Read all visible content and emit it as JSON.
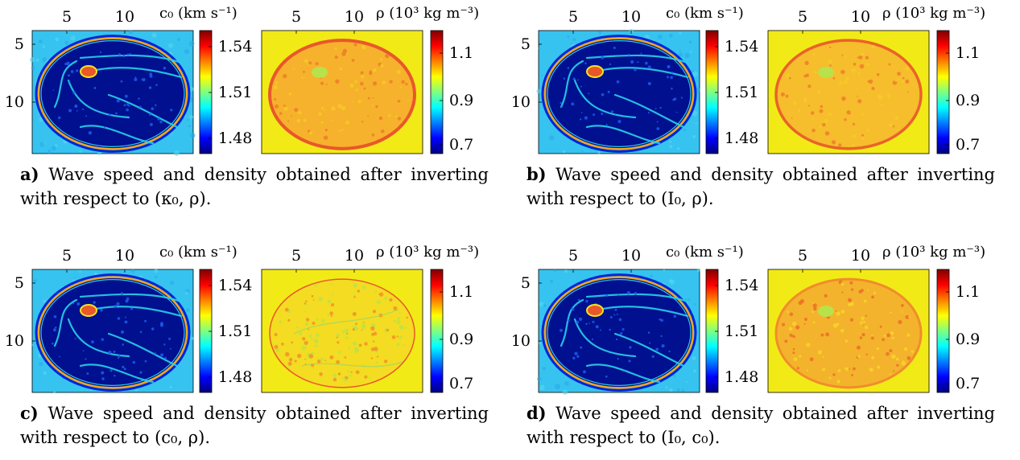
{
  "figure": {
    "panels": [
      {
        "letter": "a)",
        "caption": "Wave speed and density obtained after inverting with respect to (κ₀, ρ).",
        "left_title": "c₀ (km s⁻¹)",
        "right_title": "ρ (10³ kg m⁻³)",
        "variant": "kappa"
      },
      {
        "letter": "b)",
        "caption": "Wave speed and density obtained after inverting with respect to (I₀, ρ).",
        "left_title": "c₀ (km s⁻¹)",
        "right_title": "ρ (10³ kg m⁻³)",
        "variant": "impedance"
      },
      {
        "letter": "c)",
        "caption": "Wave speed and density obtained after inverting with respect to (c₀, ρ).",
        "left_title": "c₀ (km s⁻¹)",
        "right_title": "ρ (10³ kg m⁻³)",
        "variant": "speed"
      },
      {
        "letter": "d)",
        "caption": "Wave speed and density obtained after inverting with respect to (I₀, c₀).",
        "left_title": "c₀ (km s⁻¹)",
        "right_title": "ρ (10³ kg m⁻³)",
        "variant": "impedance-speed"
      }
    ],
    "x_ticks": [
      "5",
      "10"
    ],
    "y_ticks": [
      "5",
      "10"
    ],
    "c0_colorbar_ticks": [
      "1.54",
      "1.51",
      "1.48"
    ],
    "rho_colorbar_ticks": [
      "1.1",
      "0.9",
      "0.7"
    ],
    "colors": {
      "background_map": "#37c3ef",
      "tissue_dark": "#00108f",
      "density_background": "#f2ea17",
      "density_tissue": "#f6b22c",
      "density_edge": "#e9572b"
    }
  }
}
